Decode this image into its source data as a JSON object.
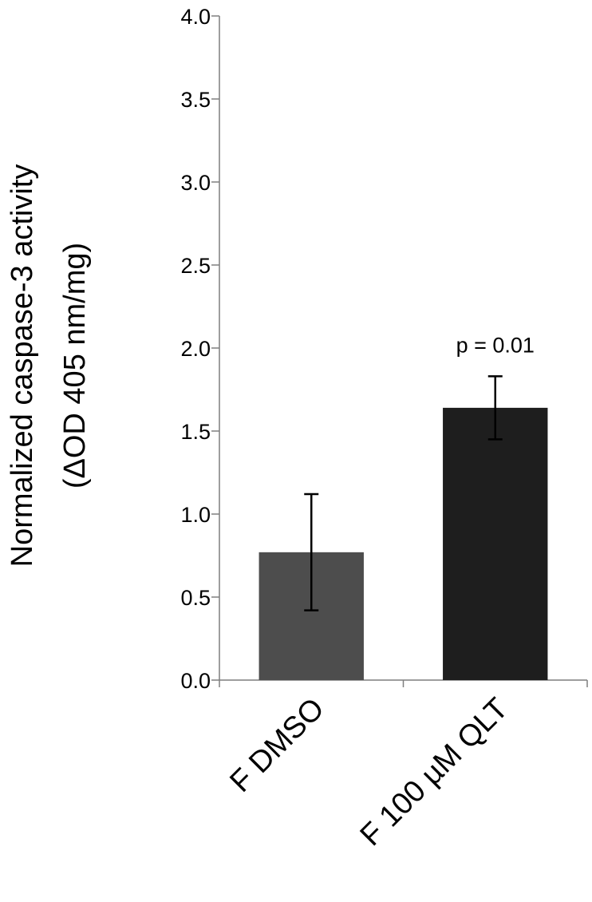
{
  "chart_data": {
    "type": "bar",
    "categories": [
      "F DMSO",
      "F 100 µM QLT"
    ],
    "values": [
      0.77,
      1.64
    ],
    "error": [
      0.35,
      0.19
    ],
    "colors": [
      "#4d4d4d",
      "#1e1e1e"
    ],
    "ylabel_lines": [
      "Normalized caspase-3 activity",
      "(ΔOD 405 nm/mg)"
    ],
    "xlabel": "",
    "title": "",
    "ylim": [
      0,
      4.0
    ],
    "yticks": [
      "0.0",
      "0.5",
      "1.0",
      "1.5",
      "2.0",
      "2.5",
      "3.0",
      "3.5",
      "4.0"
    ],
    "grid": false,
    "annotations": [
      {
        "text": "p = 0.01",
        "category_index": 1
      }
    ]
  }
}
